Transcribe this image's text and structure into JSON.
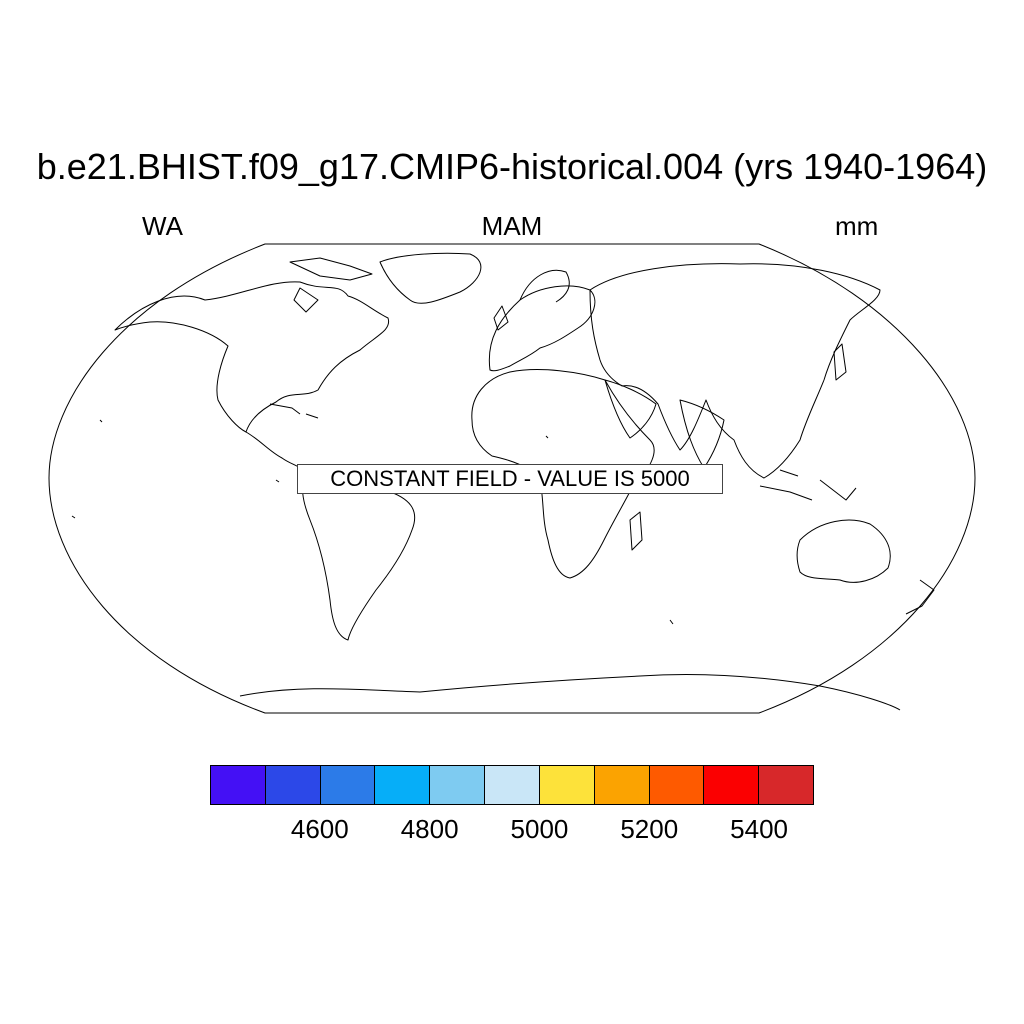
{
  "figure": {
    "title": "b.e21.BHIST.f09_g17.CMIP6-historical.004 (yrs 1940-1964)",
    "left_label": "WA",
    "center_label": "MAM",
    "right_label": "mm",
    "projection": "Robinson",
    "annotation": "CONSTANT FIELD - VALUE IS 5000"
  },
  "colorbar": {
    "colors": [
      "#4410f5",
      "#2c48e8",
      "#2c7be8",
      "#06aef8",
      "#7ecbf1",
      "#c9e6f7",
      "#fde23a",
      "#fba301",
      "#fe5a00",
      "#fb0001",
      "#d7282a"
    ],
    "tick_labels": [
      "4600",
      "4800",
      "5000",
      "5200",
      "5400"
    ]
  }
}
